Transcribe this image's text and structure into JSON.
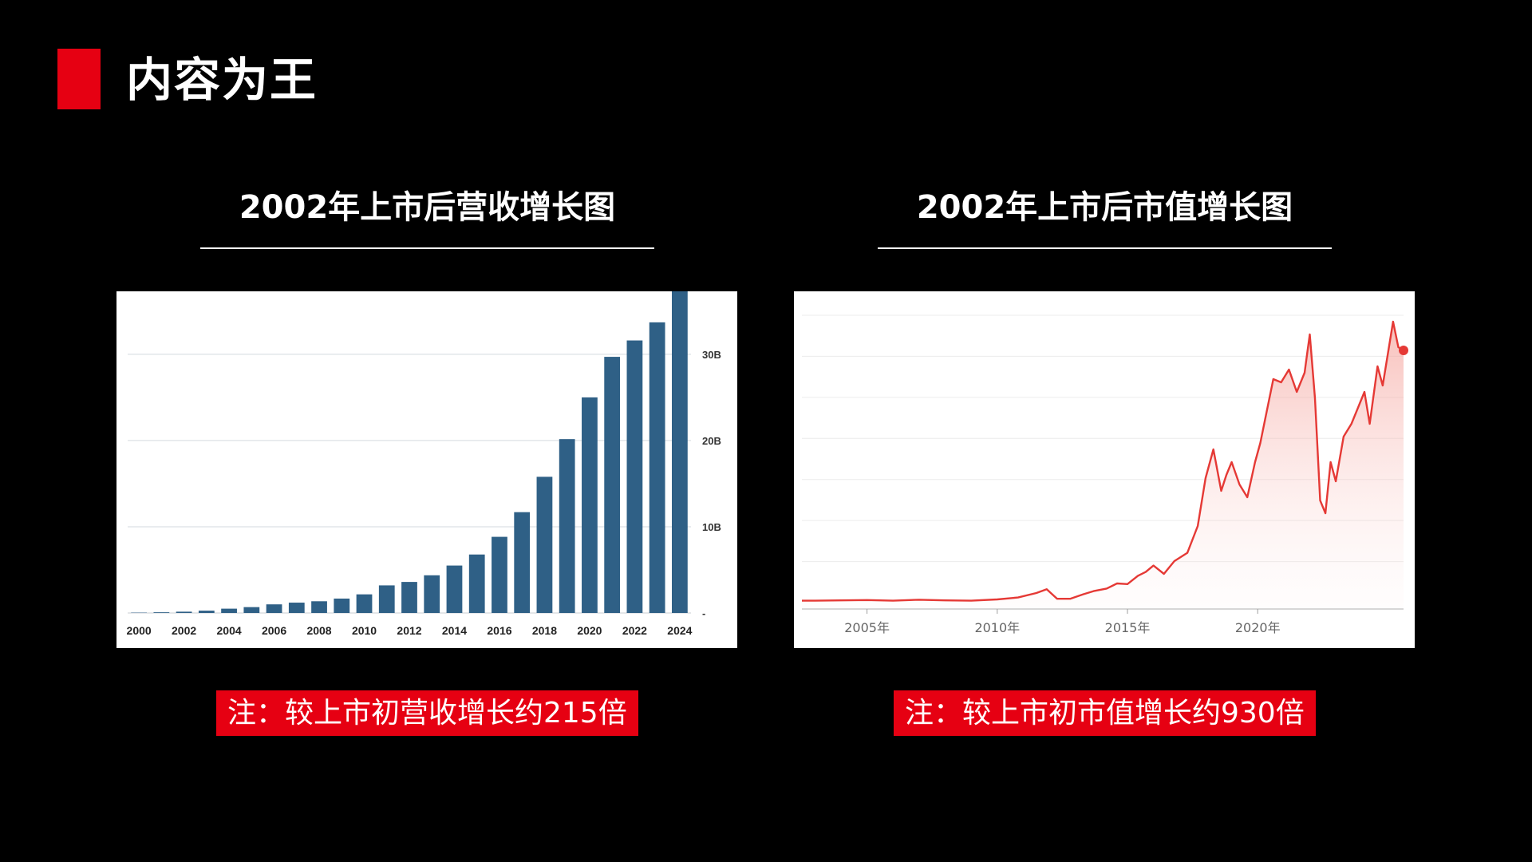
{
  "header": {
    "title": "内容为王",
    "accent_color": "#e60012"
  },
  "left_section": {
    "title": "2002年上市后营收增长图",
    "note": "注：较上市初营收增长约215倍",
    "note_bg": "#e60012"
  },
  "right_section": {
    "title": "2002年上市后市值增长图",
    "note": "注：较上市初市值增长约930倍",
    "note_bg": "#e60012"
  },
  "chart_data": [
    {
      "type": "bar",
      "title": "",
      "xlabel": "",
      "ylabel": "",
      "color": "#2f6086",
      "categories": [
        "2000",
        "2001",
        "2002",
        "2003",
        "2004",
        "2005",
        "2006",
        "2007",
        "2008",
        "2009",
        "2010",
        "2011",
        "2012",
        "2013",
        "2014",
        "2015",
        "2016",
        "2017",
        "2018",
        "2019",
        "2020",
        "2021",
        "2022",
        "2023",
        "2024"
      ],
      "values": [
        0.04,
        0.08,
        0.15,
        0.27,
        0.5,
        0.68,
        1.0,
        1.2,
        1.36,
        1.67,
        2.16,
        3.2,
        3.6,
        4.37,
        5.5,
        6.78,
        8.83,
        11.69,
        15.79,
        20.16,
        25.0,
        29.7,
        31.6,
        33.7,
        39.0
      ],
      "x_tick_labels": [
        "2000",
        "2002",
        "2004",
        "2006",
        "2008",
        "2010",
        "2012",
        "2014",
        "2016",
        "2018",
        "2020",
        "2022",
        "2024"
      ],
      "y_ticks": [
        0,
        10,
        20,
        30
      ],
      "y_tick_labels": [
        "-",
        "10B",
        "20B",
        "30B"
      ],
      "ylim": [
        0,
        36
      ],
      "grid": true,
      "y_axis_side": "right"
    },
    {
      "type": "area",
      "title": "",
      "xlabel": "",
      "ylabel": "",
      "color": "#e53935",
      "x": [
        2002.5,
        2003,
        2004,
        2005,
        2006,
        2007,
        2008,
        2009,
        2010,
        2010.8,
        2011.5,
        2011.9,
        2012.3,
        2012.8,
        2013.3,
        2013.7,
        2014.2,
        2014.6,
        2015.0,
        2015.4,
        2015.7,
        2016.0,
        2016.4,
        2016.8,
        2017.3,
        2017.7,
        2018.0,
        2018.3,
        2018.6,
        2018.8,
        2019.0,
        2019.3,
        2019.6,
        2019.9,
        2020.1,
        2020.3,
        2020.6,
        2020.9,
        2021.2,
        2021.5,
        2021.8,
        2021.9,
        2022.0,
        2022.2,
        2022.4,
        2022.6,
        2022.8,
        2023.0,
        2023.3,
        2023.6,
        2023.9,
        2024.1,
        2024.3,
        2024.6,
        2024.8,
        2025.0,
        2025.2,
        2025.4,
        2025.6
      ],
      "y": [
        0.3,
        0.3,
        0.35,
        0.4,
        0.3,
        0.45,
        0.35,
        0.3,
        0.5,
        0.8,
        1.5,
        2.1,
        0.6,
        0.6,
        1.3,
        1.8,
        2.2,
        3.0,
        2.9,
        4.2,
        4.8,
        5.8,
        4.5,
        6.5,
        7.8,
        12.0,
        19.5,
        24.0,
        17.5,
        20.0,
        22.0,
        18.5,
        16.5,
        22.0,
        25.0,
        29.0,
        35.0,
        34.5,
        36.5,
        33.0,
        36.0,
        39.0,
        42.0,
        32.0,
        16.0,
        14.0,
        22.0,
        19.0,
        26.0,
        28.0,
        31.0,
        33.0,
        28.0,
        37.0,
        34.0,
        39.0,
        44.0,
        40.0,
        39.5
      ],
      "x_ticks": [
        2005,
        2010,
        2015,
        2020
      ],
      "x_tick_labels": [
        "2005年",
        "2010年",
        "2015年",
        "2020年"
      ],
      "xlim": [
        2002.5,
        2025.6
      ],
      "ylim": [
        0,
        45
      ],
      "grid": true,
      "end_marker": true
    }
  ]
}
